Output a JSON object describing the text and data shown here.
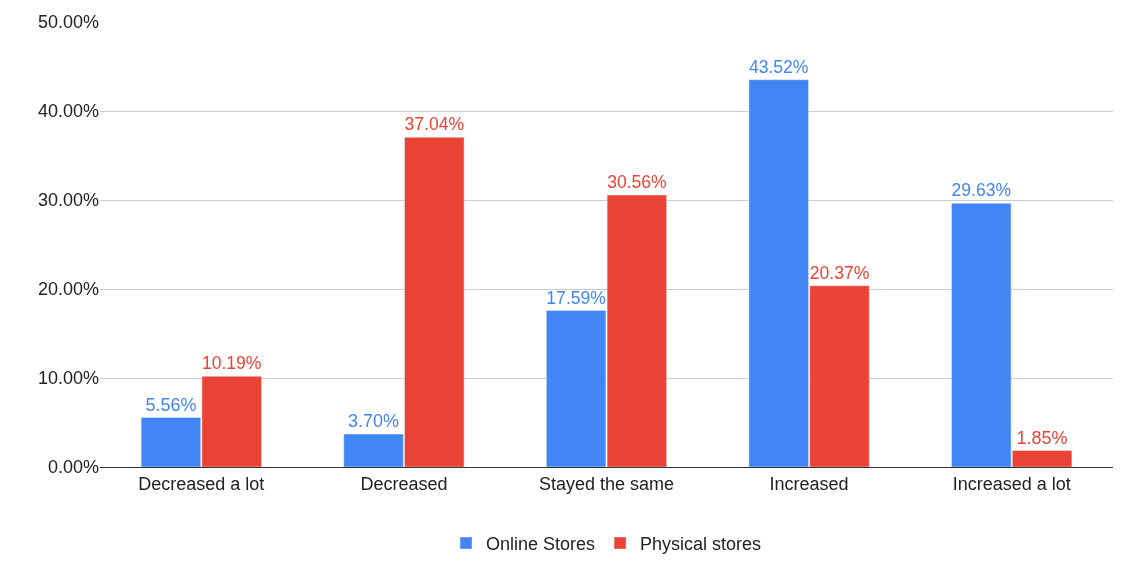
{
  "chart_data": {
    "type": "bar",
    "categories": [
      "Decreased a lot",
      "Decreased",
      "Stayed the same",
      "Increased",
      "Increased a lot"
    ],
    "series": [
      {
        "name": "Online Stores",
        "color": "#4285f4",
        "values": [
          5.56,
          3.7,
          17.59,
          43.52,
          29.63
        ],
        "value_labels": [
          "5.56%",
          "3.70%",
          "17.59%",
          "43.52%",
          "29.63%"
        ]
      },
      {
        "name": "Physical stores",
        "color": "#ea4335",
        "values": [
          10.19,
          37.04,
          30.56,
          20.37,
          1.85
        ],
        "value_labels": [
          "10.19%",
          "37.04%",
          "30.56%",
          "20.37%",
          "1.85%"
        ]
      }
    ],
    "ylim": [
      0,
      50
    ],
    "yticks": [
      {
        "value": 0,
        "label": "0.00%"
      },
      {
        "value": 10,
        "label": "10.00%"
      },
      {
        "value": 20,
        "label": "20.00%"
      },
      {
        "value": 30,
        "label": "30.00%"
      },
      {
        "value": 40,
        "label": "40.00%"
      },
      {
        "value": 50,
        "label": "50.00%"
      }
    ],
    "grid": "y",
    "legend": "bottom"
  }
}
